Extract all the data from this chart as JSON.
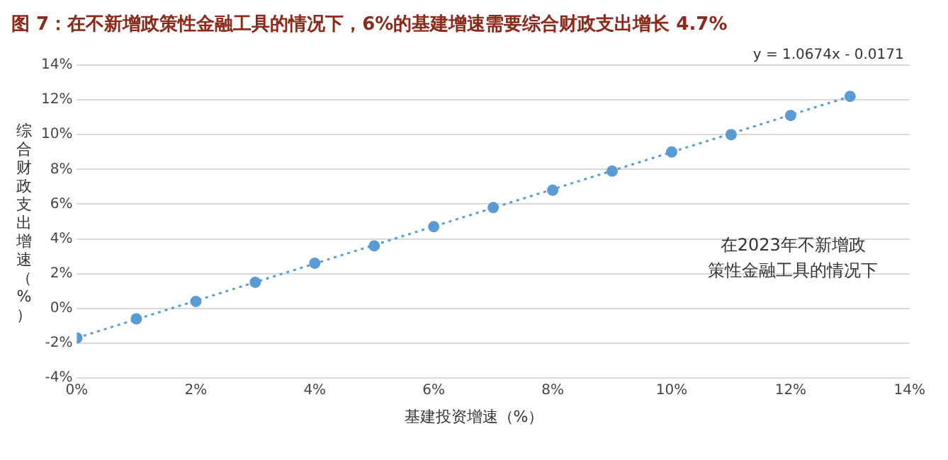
{
  "chart_data": {
    "type": "scatter",
    "title": "图 7：在不新增政策性金融工具的情况下，6%的基建增速需要综合财政支出增长 4.7%",
    "xlabel": "基建投资增速（%）",
    "ylabel": "综合财政支出增速（%）",
    "series": [
      {
        "type": "scatter",
        "color": "#5b9bd5",
        "marker": "circle",
        "x": [
          0,
          1,
          2,
          3,
          4,
          5,
          6,
          7,
          8,
          9,
          10,
          11,
          12,
          13
        ],
        "values": [
          -1.7,
          -0.6,
          0.4,
          1.5,
          2.6,
          3.6,
          4.7,
          5.8,
          6.8,
          7.9,
          9.0,
          10.0,
          11.1,
          12.2
        ]
      },
      {
        "type": "line",
        "color": "#5b9bd5",
        "line_style": "dotted",
        "marker": "none",
        "x": [
          0,
          13
        ],
        "values": [
          -1.7,
          12.2
        ]
      }
    ],
    "xlim": [
      0,
      14
    ],
    "xticks": [
      {
        "value": 0,
        "label": "0%"
      },
      {
        "value": 2,
        "label": "2%"
      },
      {
        "value": 4,
        "label": "4%"
      },
      {
        "value": 6,
        "label": "6%"
      },
      {
        "value": 8,
        "label": "8%"
      },
      {
        "value": 10,
        "label": "10%"
      },
      {
        "value": 12,
        "label": "12%"
      },
      {
        "value": 14,
        "label": "14%"
      }
    ],
    "ylim": [
      -4,
      14
    ],
    "yticks": [
      {
        "value": -4,
        "label": "-4%"
      },
      {
        "value": -2,
        "label": "-2%"
      },
      {
        "value": 0,
        "label": "0%"
      },
      {
        "value": 2,
        "label": "2%"
      },
      {
        "value": 4,
        "label": "4%"
      },
      {
        "value": 6,
        "label": "6%"
      },
      {
        "value": 8,
        "label": "8%"
      },
      {
        "value": 10,
        "label": "10%"
      },
      {
        "value": 12,
        "label": "12%"
      },
      {
        "value": 14,
        "label": "14%"
      }
    ],
    "grid": "y",
    "legend": false,
    "annotations": [
      "y = 1.0674x - 0.0171",
      "在2023年不新增政策性金融工具的情况下"
    ]
  }
}
